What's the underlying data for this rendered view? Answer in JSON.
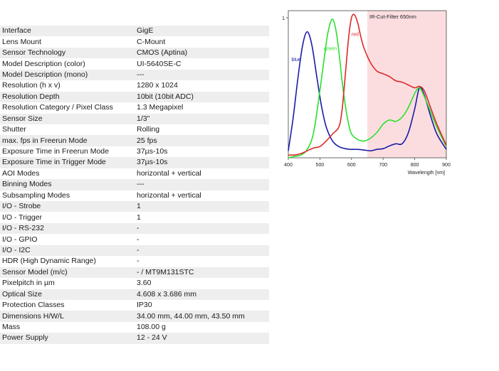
{
  "specs": [
    {
      "key": "Interface",
      "value": "GigE"
    },
    {
      "key": "Lens Mount",
      "value": "C-Mount"
    },
    {
      "key": "Sensor Technology",
      "value": "CMOS (Aptina)"
    },
    {
      "key": "Model Description (color)",
      "value": "UI-5640SE-C"
    },
    {
      "key": "Model Description (mono)",
      "value": "---"
    },
    {
      "key": "Resolution (h x v)",
      "value": "1280 x 1024"
    },
    {
      "key": "Resolution Depth",
      "value": "10bit (10bit ADC)"
    },
    {
      "key": "Resolution Category / Pixel Class",
      "value": "1.3 Megapixel"
    },
    {
      "key": "Sensor Size",
      "value": "1/3\""
    },
    {
      "key": "Shutter",
      "value": "Rolling"
    },
    {
      "key": "max. fps in Freerun Mode",
      "value": "25 fps"
    },
    {
      "key": "Exposure Time in Freerun Mode",
      "value": "37µs-10s"
    },
    {
      "key": "Exposure Time in Trigger Mode",
      "value": "37µs-10s"
    },
    {
      "key": "AOI Modes",
      "value": "horizontal + vertical"
    },
    {
      "key": "Binning Modes",
      "value": "---"
    },
    {
      "key": "Subsampling Modes",
      "value": "horizontal + vertical"
    },
    {
      "key": "I/O - Strobe",
      "value": "1"
    },
    {
      "key": "I/O - Trigger",
      "value": "1"
    },
    {
      "key": "I/O - RS-232",
      "value": "-"
    },
    {
      "key": "I/O - GPIO",
      "value": "-"
    },
    {
      "key": "I/O - I2C",
      "value": "-"
    },
    {
      "key": "HDR (High Dynamic Range)",
      "value": "-"
    },
    {
      "key": "Sensor Model (m/c)",
      "value": "- / MT9M131STC"
    },
    {
      "key": "Pixelpitch in µm",
      "value": "3.60"
    },
    {
      "key": "Optical Size",
      "value": "4.608 x 3.686 mm"
    },
    {
      "key": "Protection Classes",
      "value": "IP30"
    },
    {
      "key": "Dimensions H/W/L",
      "value": "34.00 mm, 44.00 mm, 43.50 mm"
    },
    {
      "key": "Mass",
      "value": "108.00 g"
    },
    {
      "key": "Power Supply",
      "value": "12 - 24 V"
    }
  ],
  "chart_data": {
    "type": "line",
    "title": "",
    "xlabel": "Wavelength [nm]",
    "ylabel": "",
    "xlim": [
      400,
      900
    ],
    "ylim": [
      0,
      1
    ],
    "x_ticks": [
      400,
      500,
      600,
      700,
      800,
      900
    ],
    "y_ticks": [
      "1"
    ],
    "grid": false,
    "legend": "inline labels",
    "annotation": {
      "label": "IR-Cut-Filter 650nm",
      "x_from": 650,
      "x_to": 900,
      "color": "#fbdde0"
    },
    "series": [
      {
        "name": "blue",
        "color": "#1a1aa8",
        "x": [
          400,
          415,
          430,
          445,
          460,
          475,
          490,
          505,
          520,
          540,
          560,
          580,
          600,
          620,
          640,
          660,
          680,
          700,
          720,
          740,
          760,
          780,
          800,
          815,
          830,
          850,
          870,
          900
        ],
        "y": [
          0.05,
          0.28,
          0.56,
          0.8,
          0.9,
          0.8,
          0.58,
          0.37,
          0.22,
          0.12,
          0.08,
          0.065,
          0.06,
          0.06,
          0.055,
          0.05,
          0.06,
          0.065,
          0.085,
          0.1,
          0.1,
          0.18,
          0.35,
          0.5,
          0.45,
          0.3,
          0.17,
          0.06
        ]
      },
      {
        "name": "green",
        "color": "#2ae02a",
        "x": [
          400,
          420,
          440,
          460,
          480,
          500,
          520,
          530,
          540,
          550,
          560,
          570,
          580,
          590,
          600,
          620,
          640,
          660,
          680,
          700,
          720,
          740,
          760,
          780,
          800,
          815,
          830,
          850,
          870,
          900
        ],
        "y": [
          0.0,
          0.01,
          0.02,
          0.06,
          0.18,
          0.48,
          0.82,
          0.94,
          0.99,
          0.92,
          0.76,
          0.55,
          0.38,
          0.25,
          0.17,
          0.13,
          0.12,
          0.14,
          0.18,
          0.24,
          0.27,
          0.26,
          0.29,
          0.36,
          0.46,
          0.5,
          0.44,
          0.33,
          0.22,
          0.08
        ]
      },
      {
        "name": "red",
        "color": "#dd2a2a",
        "x": [
          400,
          420,
          440,
          460,
          480,
          500,
          520,
          540,
          560,
          570,
          580,
          590,
          600,
          610,
          620,
          630,
          640,
          660,
          680,
          700,
          720,
          740,
          760,
          780,
          800,
          815,
          830,
          850,
          870,
          900
        ],
        "y": [
          0.02,
          0.02,
          0.03,
          0.05,
          0.07,
          0.08,
          0.12,
          0.17,
          0.22,
          0.34,
          0.58,
          0.84,
          1.0,
          1.02,
          0.96,
          0.86,
          0.78,
          0.68,
          0.62,
          0.6,
          0.58,
          0.55,
          0.54,
          0.52,
          0.5,
          0.51,
          0.48,
          0.36,
          0.24,
          0.09
        ]
      }
    ]
  }
}
